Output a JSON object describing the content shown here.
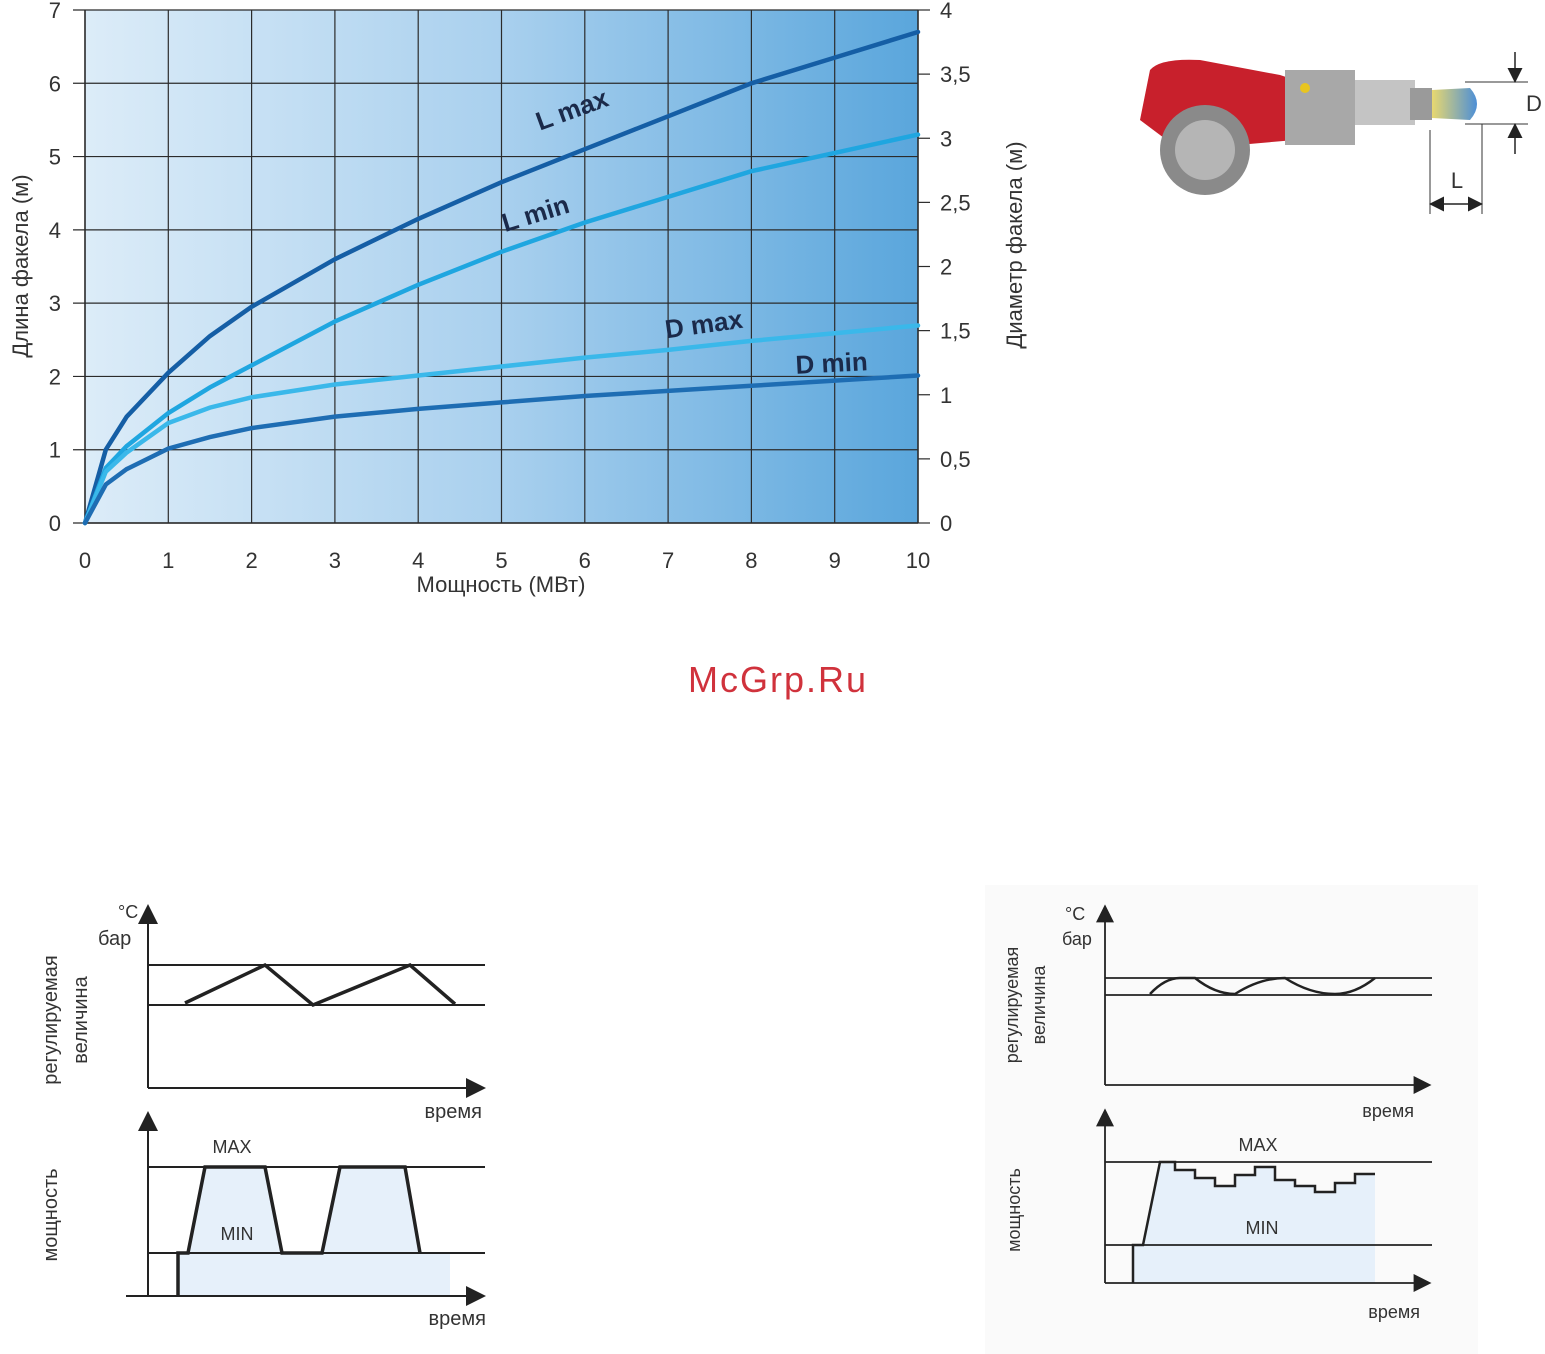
{
  "chart_data": {
    "type": "line",
    "x_label": "Мощность (МВт)",
    "y_label": "Длина факела (м)",
    "y2_label": "Диаметр факела (м)",
    "x": [
      0,
      0.25,
      0.5,
      1,
      1.5,
      2,
      3,
      4,
      5,
      6,
      7,
      8,
      9,
      10
    ],
    "series": [
      {
        "name": "L max",
        "color": "#155ea5",
        "values": [
          0,
          1.0,
          1.45,
          2.05,
          2.55,
          2.95,
          3.6,
          4.15,
          4.65,
          5.1,
          5.55,
          6.0,
          6.35,
          6.7
        ]
      },
      {
        "name": "L min",
        "color": "#1fa6e0",
        "values": [
          0,
          0.75,
          1.05,
          1.5,
          1.85,
          2.15,
          2.75,
          3.25,
          3.7,
          4.1,
          4.45,
          4.8,
          5.05,
          5.3
        ]
      },
      {
        "name": "D max",
        "color": "#3ab8ea",
        "axis": "y2",
        "values": [
          0,
          0.4,
          0.55,
          0.78,
          0.9,
          0.98,
          1.08,
          1.15,
          1.22,
          1.29,
          1.35,
          1.42,
          1.48,
          1.54
        ]
      },
      {
        "name": "D min",
        "color": "#1e6db3",
        "axis": "y2",
        "values": [
          0,
          0.3,
          0.42,
          0.58,
          0.67,
          0.74,
          0.83,
          0.89,
          0.94,
          0.99,
          1.03,
          1.07,
          1.11,
          1.15
        ]
      }
    ],
    "xlim": [
      0,
      10
    ],
    "xticks": [
      0,
      1,
      2,
      3,
      4,
      5,
      6,
      7,
      8,
      9,
      10
    ],
    "ylim": [
      0,
      7
    ],
    "yticks": [
      0,
      1,
      2,
      3,
      4,
      5,
      6,
      7
    ],
    "y2lim": [
      0,
      4
    ],
    "y2ticks": [
      0,
      {
        "value": 0.5,
        "label": "0,5"
      },
      1,
      {
        "value": 1.5,
        "label": "1,5"
      },
      2,
      {
        "value": 2.5,
        "label": "2,5"
      },
      3,
      {
        "value": 3.5,
        "label": "3,5"
      },
      4
    ],
    "grid": true
  },
  "burner": {
    "diameter_label": "D",
    "length_label": "L"
  },
  "watermark": "McGrp.Ru",
  "diagrams": [
    {
      "unit_top": "°C",
      "unit_bottom": "бар",
      "controlled_label": [
        "регулируемая",
        "величина"
      ],
      "time_label_top": "время",
      "power_label": "мощность",
      "max_label": "MAX",
      "min_label": "MIN",
      "time_label_bottom": "время"
    },
    {
      "unit_top": "°C",
      "unit_bottom": "бар",
      "controlled_label": [
        "регулируемая",
        "величина"
      ],
      "time_label_top": "время",
      "power_label": "мощность",
      "max_label": "MAX",
      "min_label": "MIN",
      "time_label_bottom": "время"
    }
  ]
}
